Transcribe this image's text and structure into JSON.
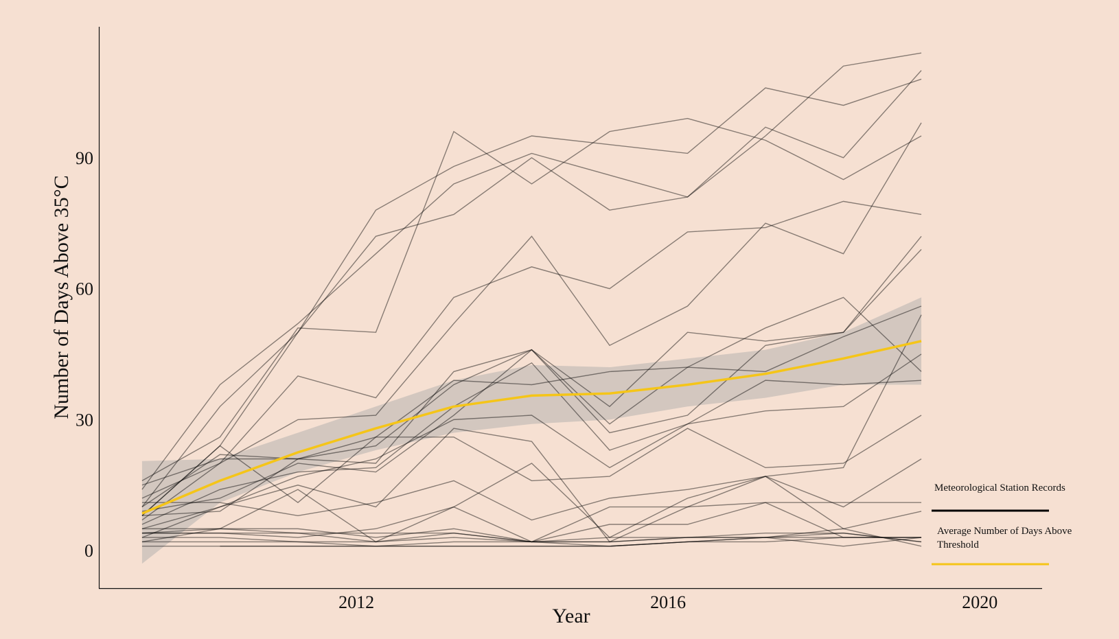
{
  "chart_data": {
    "type": "line",
    "x_label": "Year",
    "y_label": "Number of Days Above 35°C",
    "x": [
      2009.25,
      2010.25,
      2011.25,
      2012.25,
      2013.25,
      2014.25,
      2015.25,
      2016.25,
      2017.25,
      2018.25,
      2019.25
    ],
    "xlim": [
      2008.7,
      2020.8
    ],
    "xticks": [
      2012,
      2016,
      2020
    ],
    "ylim": [
      -8.7,
      120
    ],
    "yticks": [
      0,
      30,
      60,
      90
    ],
    "series": [
      {
        "name": "Meteorological Station Records",
        "color": "#000000",
        "lines": [
          [
            14,
            38,
            52,
            68,
            84,
            91,
            86,
            81,
            95,
            111,
            114
          ],
          [
            10,
            33,
            50,
            78,
            88,
            95,
            93,
            91,
            106,
            102,
            108
          ],
          [
            16,
            26,
            51,
            50,
            96,
            84,
            96,
            99,
            94,
            85,
            95
          ],
          [
            8,
            24,
            50,
            72,
            77,
            90,
            78,
            81,
            97,
            90,
            110
          ],
          [
            12,
            20,
            40,
            35,
            58,
            65,
            60,
            73,
            74,
            80,
            77
          ],
          [
            7,
            20,
            30,
            31,
            52,
            72,
            47,
            56,
            75,
            68,
            98
          ],
          [
            10,
            22,
            21,
            20,
            41,
            46,
            33,
            50,
            48,
            50,
            69
          ],
          [
            15,
            21,
            21,
            24,
            38,
            46,
            29,
            42,
            51,
            58,
            41
          ],
          [
            8,
            24,
            11,
            26,
            39,
            38,
            41,
            42,
            41,
            49,
            56
          ],
          [
            9,
            12,
            20,
            18,
            31,
            46,
            27,
            31,
            47,
            50,
            72
          ],
          [
            6,
            14,
            18,
            19,
            33,
            43,
            23,
            29,
            39,
            38,
            39
          ],
          [
            5,
            10,
            17,
            21,
            30,
            31,
            19,
            29,
            32,
            33,
            45
          ],
          [
            3,
            10,
            15,
            10,
            28,
            25,
            2,
            10,
            17,
            10,
            21
          ],
          [
            8,
            9,
            21,
            26,
            26,
            16,
            17,
            28,
            19,
            20,
            31
          ],
          [
            11,
            11,
            8,
            11,
            16,
            7,
            12,
            14,
            17,
            19,
            54
          ],
          [
            2,
            5,
            14,
            2,
            10,
            20,
            3,
            12,
            17,
            5,
            9
          ],
          [
            4,
            4,
            3,
            5,
            10,
            2,
            10,
            10,
            11,
            11,
            11
          ],
          [
            4,
            4,
            4,
            4,
            4,
            2,
            1,
            2,
            2,
            3,
            3
          ],
          [
            5,
            5,
            4,
            2,
            4,
            2,
            6,
            6,
            11,
            3,
            3
          ],
          [
            3,
            3,
            2,
            2,
            3,
            2,
            3,
            3,
            4,
            4,
            2
          ],
          [
            1,
            1,
            1,
            1,
            1,
            1,
            1,
            2,
            3,
            1,
            3
          ],
          [
            null,
            1,
            1,
            1,
            1,
            1,
            1,
            2,
            3,
            3,
            3
          ],
          [
            4,
            5,
            5,
            3,
            5,
            2,
            2,
            3,
            3,
            5,
            1
          ],
          [
            2,
            2,
            2,
            1,
            2,
            2,
            2,
            3,
            3,
            4,
            2
          ]
        ]
      },
      {
        "name": "Average Number of Days Above Threshold",
        "color": "#f5c518",
        "values": [
          8.5,
          16,
          22.5,
          28,
          33,
          35.5,
          36,
          38,
          40.5,
          44,
          48
        ],
        "lower": [
          -3,
          11,
          18,
          23,
          27,
          29,
          30,
          33,
          35,
          38,
          38
        ],
        "upper": [
          20.5,
          21,
          27,
          33,
          39,
          42.5,
          42,
          44,
          46,
          50,
          58
        ],
        "band_color": "#a8a8a8"
      }
    ]
  }
}
